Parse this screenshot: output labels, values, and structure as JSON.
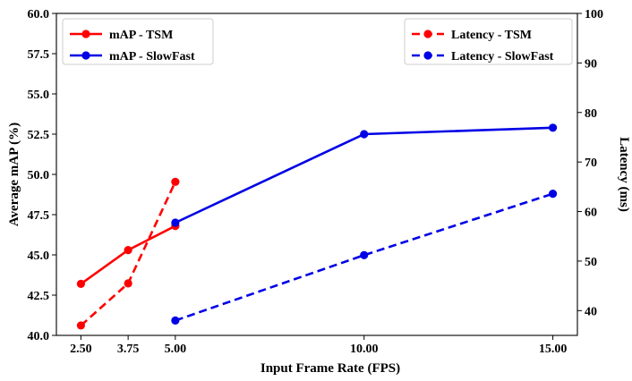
{
  "chart_data": {
    "type": "line",
    "xlabel": "Input Frame Rate (FPS)",
    "ylabel": "Average mAP (%)",
    "y2label": "Latency (ms)",
    "x_ticks": [
      2.5,
      3.75,
      5.0,
      10.0,
      15.0
    ],
    "x_tick_labels": [
      "2.50",
      "3.75",
      "5.00",
      "10.00",
      "15.00"
    ],
    "xlim": [
      1.85,
      15.65
    ],
    "ylim": [
      40.0,
      60.0
    ],
    "y_ticks": [
      40.0,
      42.5,
      45.0,
      47.5,
      50.0,
      52.5,
      55.0,
      57.5,
      60.0
    ],
    "y_tick_labels": [
      "40.0",
      "42.5",
      "45.0",
      "47.5",
      "50.0",
      "52.5",
      "55.0",
      "57.5",
      "60.0"
    ],
    "y2lim": [
      35,
      100
    ],
    "y2_ticks": [
      40,
      50,
      60,
      70,
      80,
      90,
      100
    ],
    "y2_tick_labels": [
      "40",
      "50",
      "60",
      "70",
      "80",
      "90",
      "100"
    ],
    "grid": false,
    "series": [
      {
        "name": "mAP - TSM",
        "axis": "left",
        "style": "solid",
        "color": "#ff0000",
        "x": [
          2.5,
          3.75,
          5.0
        ],
        "values": [
          43.2,
          45.3,
          46.8
        ]
      },
      {
        "name": "mAP - SlowFast",
        "axis": "left",
        "style": "solid",
        "color": "#0000e6",
        "x": [
          5.0,
          10.0,
          15.0
        ],
        "values": [
          47.0,
          52.5,
          52.9
        ]
      },
      {
        "name": "Latency - TSM",
        "axis": "right",
        "style": "dashed",
        "color": "#ff0000",
        "x": [
          2.5,
          3.75,
          5.0
        ],
        "values": [
          37.0,
          45.5,
          66.0
        ]
      },
      {
        "name": "Latency - SlowFast",
        "axis": "right",
        "style": "dashed",
        "color": "#0000e6",
        "x": [
          5.0,
          10.0,
          15.0
        ],
        "values": [
          38.0,
          51.2,
          63.6
        ]
      }
    ],
    "legends": [
      {
        "position": "top-left",
        "entries": [
          "mAP - TSM",
          "mAP - SlowFast"
        ]
      },
      {
        "position": "top-right",
        "entries": [
          "Latency - TSM",
          "Latency - SlowFast"
        ]
      }
    ]
  }
}
